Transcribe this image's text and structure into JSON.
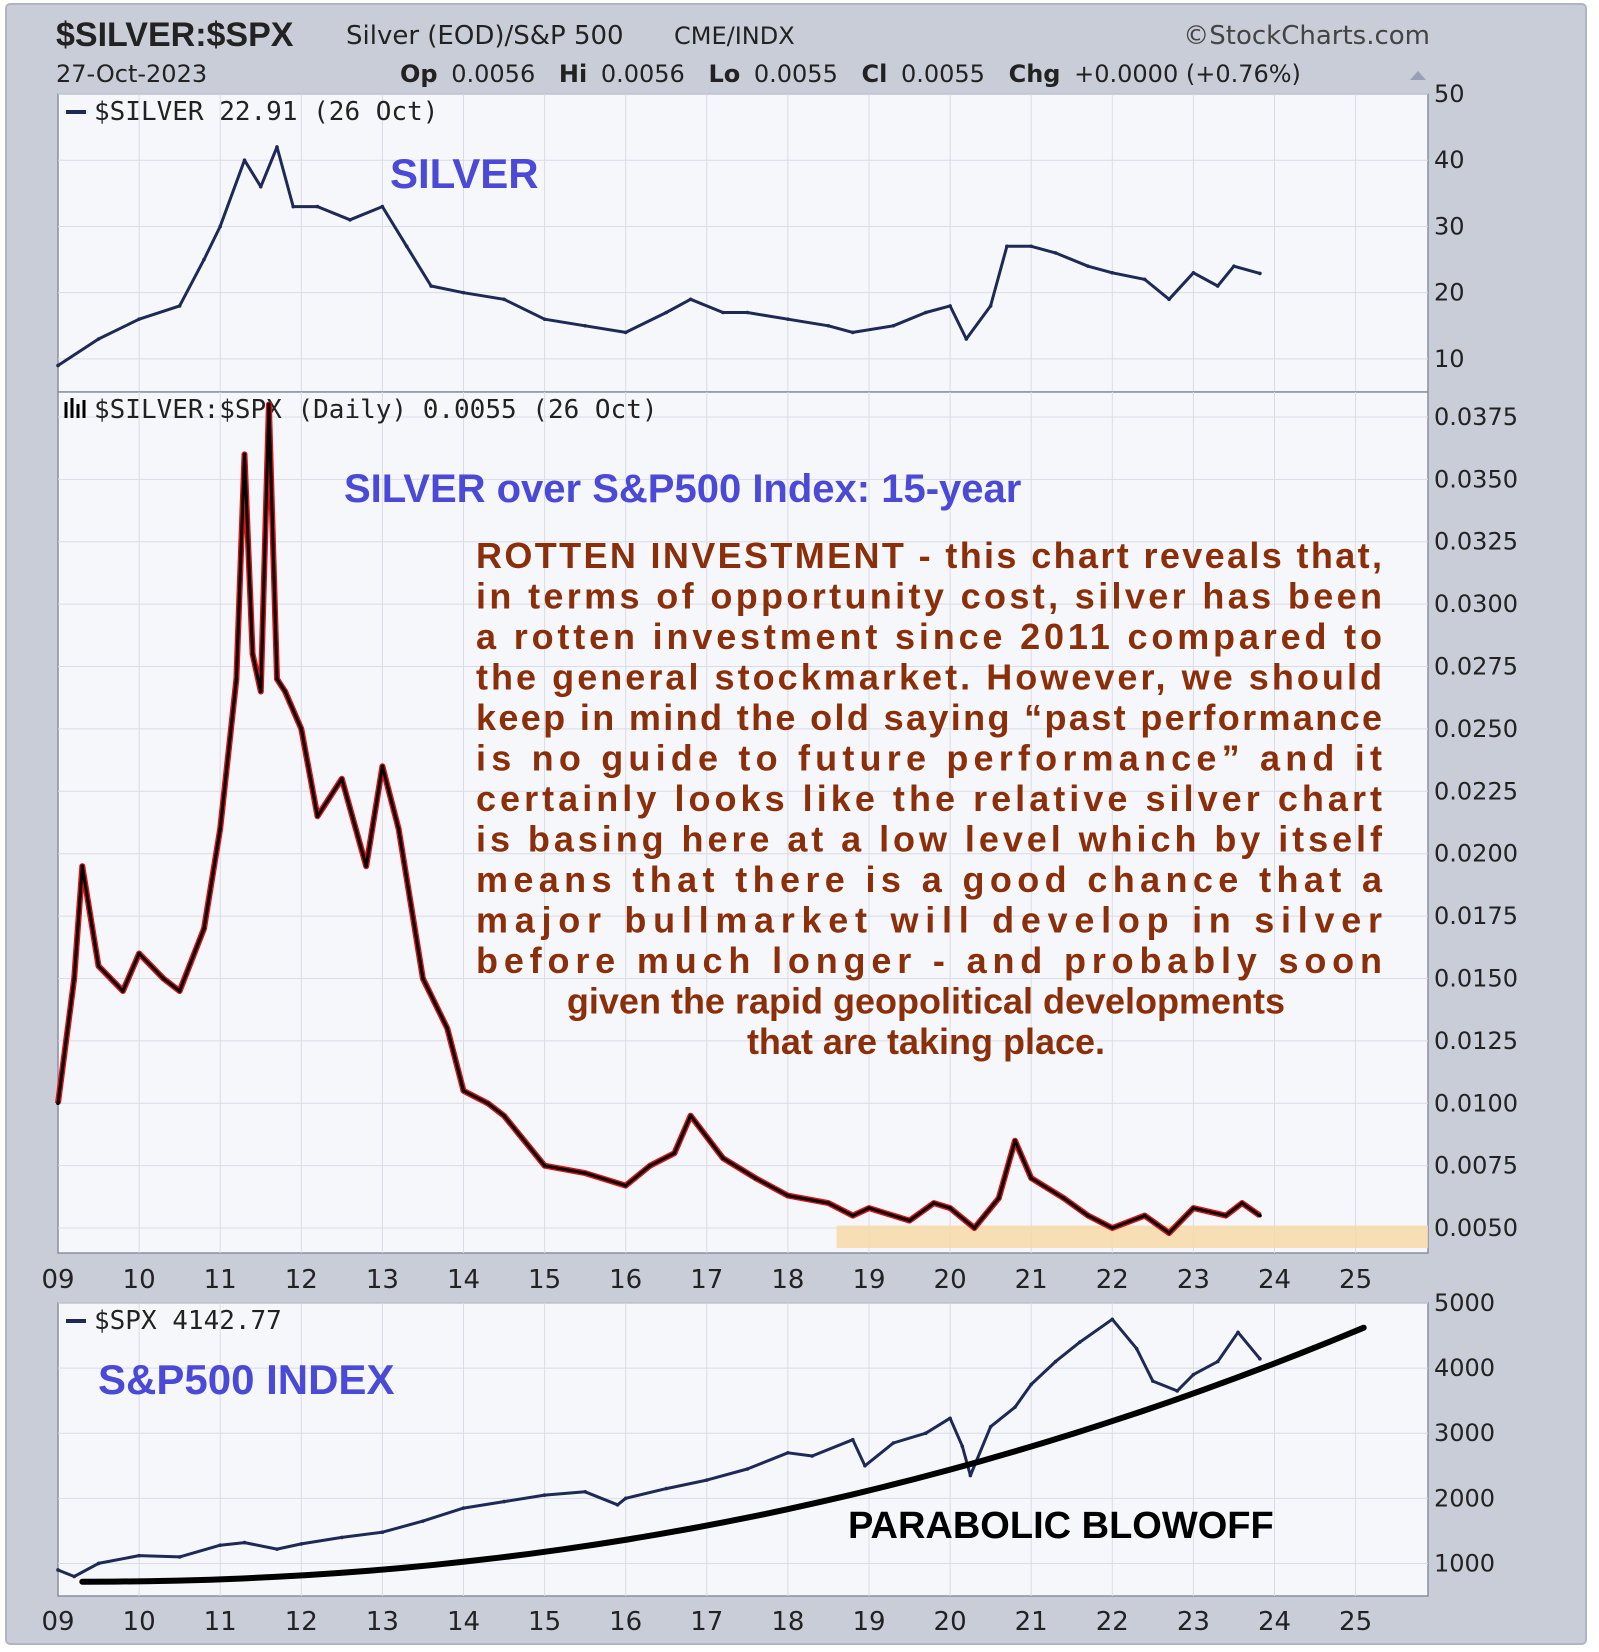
{
  "header": {
    "symbol": "$SILVER:$SPX",
    "description": "Silver (EOD)/S&P 500",
    "exchange": "CME/INDX",
    "source": "©StockCharts.com",
    "date": "27-Oct-2023",
    "op_label": "Op",
    "op_value": "0.0056",
    "hi_label": "Hi",
    "hi_value": "0.0056",
    "lo_label": "Lo",
    "lo_value": "0.0055",
    "cl_label": "Cl",
    "cl_value": "0.0055",
    "chg_label": "Chg",
    "chg_value": "+0.0000 (+0.76%)"
  },
  "colors": {
    "frame": "#c9cdd8",
    "plot_bg": "#f6f7fb",
    "grid": "#d8dce6",
    "series_line": "#1e2a55",
    "ratio_line": "#000000",
    "ratio_red": "#dd1111",
    "title_blue": "#4a4ad6",
    "comment_brown": "#8b2e0a",
    "highlight_band": "#f7d9a8",
    "trendline": "#000000"
  },
  "x_tick_labels": [
    "09",
    "10",
    "11",
    "12",
    "13",
    "14",
    "15",
    "16",
    "17",
    "18",
    "19",
    "20",
    "21",
    "22",
    "23",
    "24",
    "25"
  ],
  "panels": {
    "silver": {
      "legend": "$SILVER 22.91 (26 Oct)",
      "title": "SILVER",
      "y_ticks": [
        "10",
        "20",
        "30",
        "40",
        "50"
      ]
    },
    "ratio": {
      "legend": "$SILVER:$SPX (Daily) 0.0055 (26 Oct)",
      "title": "SILVER over S&P500 Index: 15-year",
      "y_ticks": [
        "0.0050",
        "0.0075",
        "0.0100",
        "0.0125",
        "0.0150",
        "0.0175",
        "0.0200",
        "0.0225",
        "0.0250",
        "0.0275",
        "0.0300",
        "0.0325",
        "0.0350",
        "0.0375"
      ],
      "commentary": [
        "ROTTEN INVESTMENT - this chart reveals that,",
        "in terms of opportunity cost, silver has been",
        "a rotten investment since 2011 compared to",
        "the general stockmarket. However, we should",
        "keep in mind the old saying “past performance",
        "is no guide to future performance” and it",
        "certainly looks like the relative silver chart",
        "is basing here at a low level which by itself",
        "means that there is a good chance that a",
        "major bullmarket will develop in silver",
        "before much longer - and probably soon",
        "given the rapid geopolitical developments",
        "that are taking place."
      ]
    },
    "spx": {
      "legend": "$SPX 4142.77",
      "title": "S&P500 INDEX",
      "y_ticks": [
        "1000",
        "2000",
        "3000",
        "4000",
        "5000"
      ],
      "annotation": "PARABOLIC BLOWOFF"
    }
  },
  "chart_data": [
    {
      "type": "line",
      "name": "$SILVER",
      "ylim": [
        5,
        50
      ],
      "x": [
        2009.0,
        2009.5,
        2010.0,
        2010.5,
        2010.8,
        2011.0,
        2011.3,
        2011.5,
        2011.7,
        2011.9,
        2012.2,
        2012.6,
        2013.0,
        2013.3,
        2013.6,
        2014.0,
        2014.5,
        2015.0,
        2015.5,
        2016.0,
        2016.5,
        2016.8,
        2017.2,
        2017.5,
        2018.0,
        2018.5,
        2018.8,
        2019.3,
        2019.7,
        2020.0,
        2020.2,
        2020.5,
        2020.7,
        2021.0,
        2021.3,
        2021.7,
        2022.0,
        2022.4,
        2022.7,
        2023.0,
        2023.3,
        2023.5,
        2023.82
      ],
      "y": [
        9,
        13,
        16,
        18,
        25,
        30,
        40,
        36,
        42,
        33,
        33,
        31,
        33,
        27,
        21,
        20,
        19,
        16,
        15,
        14,
        17,
        19,
        17,
        17,
        16,
        15,
        14,
        15,
        17,
        18,
        13,
        18,
        27,
        27,
        26,
        24,
        23,
        22,
        19,
        23,
        21,
        24,
        22.91
      ]
    },
    {
      "type": "line",
      "name": "$SILVER:$SPX",
      "ylim": [
        0.004,
        0.0385
      ],
      "x": [
        2009.0,
        2009.2,
        2009.3,
        2009.5,
        2009.8,
        2010.0,
        2010.3,
        2010.5,
        2010.8,
        2011.0,
        2011.2,
        2011.3,
        2011.4,
        2011.5,
        2011.6,
        2011.7,
        2011.8,
        2012.0,
        2012.2,
        2012.5,
        2012.8,
        2013.0,
        2013.2,
        2013.5,
        2013.8,
        2014.0,
        2014.3,
        2014.5,
        2015.0,
        2015.5,
        2016.0,
        2016.3,
        2016.6,
        2016.8,
        2017.2,
        2017.6,
        2018.0,
        2018.5,
        2018.8,
        2019.0,
        2019.5,
        2019.8,
        2020.0,
        2020.3,
        2020.6,
        2020.8,
        2021.0,
        2021.4,
        2021.7,
        2022.0,
        2022.4,
        2022.7,
        2023.0,
        2023.4,
        2023.6,
        2023.82
      ],
      "y": [
        0.01,
        0.015,
        0.0195,
        0.0155,
        0.0145,
        0.016,
        0.015,
        0.0145,
        0.017,
        0.021,
        0.027,
        0.036,
        0.028,
        0.0265,
        0.038,
        0.027,
        0.0265,
        0.025,
        0.0215,
        0.023,
        0.0195,
        0.0235,
        0.021,
        0.015,
        0.013,
        0.0105,
        0.01,
        0.0095,
        0.0075,
        0.0072,
        0.0067,
        0.0075,
        0.008,
        0.0095,
        0.0078,
        0.007,
        0.0063,
        0.006,
        0.0055,
        0.0058,
        0.0053,
        0.006,
        0.0058,
        0.005,
        0.0062,
        0.0085,
        0.007,
        0.0062,
        0.0055,
        0.005,
        0.0055,
        0.0048,
        0.0058,
        0.0055,
        0.006,
        0.0055
      ]
    },
    {
      "type": "line",
      "name": "$SPX",
      "ylim": [
        500,
        5000
      ],
      "x": [
        2009.0,
        2009.2,
        2009.5,
        2010.0,
        2010.5,
        2011.0,
        2011.3,
        2011.7,
        2012.0,
        2012.5,
        2013.0,
        2013.5,
        2014.0,
        2014.5,
        2015.0,
        2015.5,
        2015.9,
        2016.0,
        2016.5,
        2017.0,
        2017.5,
        2018.0,
        2018.3,
        2018.8,
        2018.95,
        2019.3,
        2019.7,
        2020.0,
        2020.15,
        2020.25,
        2020.5,
        2020.8,
        2021.0,
        2021.3,
        2021.6,
        2022.0,
        2022.3,
        2022.5,
        2022.8,
        2023.0,
        2023.3,
        2023.55,
        2023.82
      ],
      "y": [
        900,
        800,
        1000,
        1120,
        1100,
        1280,
        1320,
        1220,
        1300,
        1400,
        1480,
        1650,
        1850,
        1950,
        2050,
        2100,
        1900,
        2000,
        2150,
        2280,
        2450,
        2700,
        2650,
        2900,
        2500,
        2850,
        3000,
        3230,
        2800,
        2350,
        3100,
        3400,
        3750,
        4100,
        4400,
        4750,
        4300,
        3800,
        3650,
        3900,
        4100,
        4550,
        4142.77
      ]
    }
  ]
}
